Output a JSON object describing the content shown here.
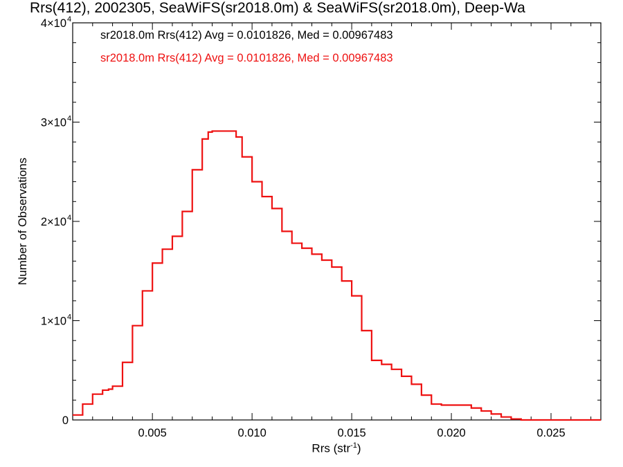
{
  "chart_data": {
    "type": "line",
    "step": true,
    "title": "Rrs(412), 2002305, SeaWiFS(sr2018.0m) & SeaWiFS(sr2018.0m), Deep-Wa",
    "xlabel_base": "Rrs (str",
    "xlabel_sup": "-1",
    "xlabel_close": ")",
    "ylabel": "Number of Observations",
    "xlim": [
      0.001,
      0.0275
    ],
    "ylim": [
      0,
      40000
    ],
    "x_ticks": [
      0.005,
      0.01,
      0.015,
      0.02,
      0.025
    ],
    "x_tick_labels": [
      "0.005",
      "0.010",
      "0.015",
      "0.020",
      "0.025"
    ],
    "y_ticks": [
      0,
      10000,
      20000,
      30000,
      40000
    ],
    "y_tick_labels": [
      "0",
      "1×10",
      "2×10",
      "3×10",
      "4×10"
    ],
    "y_tick_exponent": "4",
    "legend": [
      {
        "text": "sr2018.0m Rrs(412) Avg = 0.0101826, Med = 0.00967483",
        "color": "#000000"
      },
      {
        "text": "sr2018.0m Rrs(412) Avg = 0.0101826, Med = 0.00967483",
        "color": "#ee1111"
      }
    ],
    "series": [
      {
        "color": "#ee1111",
        "x": [
          0.001,
          0.0015,
          0.002,
          0.0025,
          0.0028,
          0.003,
          0.0035,
          0.004,
          0.0045,
          0.005,
          0.0055,
          0.006,
          0.0065,
          0.007,
          0.0075,
          0.0078,
          0.008,
          0.0085,
          0.009,
          0.0092,
          0.0095,
          0.01,
          0.0105,
          0.011,
          0.0115,
          0.012,
          0.0125,
          0.013,
          0.0135,
          0.014,
          0.0145,
          0.015,
          0.0155,
          0.016,
          0.0165,
          0.017,
          0.0175,
          0.018,
          0.0185,
          0.019,
          0.0195,
          0.02,
          0.0205,
          0.021,
          0.0215,
          0.022,
          0.0225,
          0.023,
          0.0235,
          0.024,
          0.0245,
          0.025,
          0.026,
          0.0275
        ],
        "y": [
          500,
          1600,
          2600,
          3000,
          3100,
          3400,
          5800,
          9500,
          13000,
          15800,
          17200,
          18500,
          21000,
          25200,
          28300,
          29000,
          29100,
          29100,
          29100,
          28500,
          26500,
          24000,
          22500,
          21300,
          19000,
          17800,
          17300,
          16700,
          16100,
          15400,
          14000,
          12500,
          9000,
          6000,
          5600,
          5100,
          4400,
          3600,
          2500,
          1600,
          1500,
          1500,
          1500,
          1200,
          900,
          600,
          300,
          100,
          0,
          0,
          0,
          0,
          0,
          0
        ]
      }
    ]
  }
}
